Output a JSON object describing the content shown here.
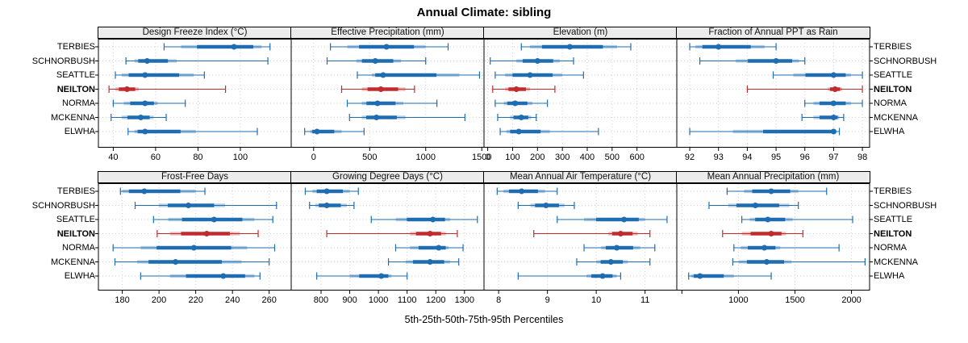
{
  "title": "Annual Climate: sibling",
  "caption": "5th-25th-50th-75th-95th Percentiles",
  "sites": [
    "TERBIES",
    "SCHNORBUSH",
    "SEATTLE",
    "NEILTON",
    "NORMA",
    "MCKENNA",
    "ELWHA"
  ],
  "highlight_site": "NEILTON",
  "colors": {
    "series_blue": "#1E6DB0",
    "highlight_red": "#C22B2E",
    "band_alpha": 0.32,
    "grid": "#d0d0d0",
    "strip_bg": "#ececec",
    "panel_border": "#000000"
  },
  "chart_data": {
    "type": "percentile-dotplot",
    "layout": "2 rows x 4 columns of panels, shared site rows, dotted grid, strip headers",
    "percentile_order": [
      "p5",
      "p25",
      "p50",
      "p75",
      "p95"
    ],
    "panels": [
      {
        "title": "Design Freeze Index (°C)",
        "xlim": [
          33,
          124
        ],
        "ticks": [
          {
            "v": 40,
            "label": "40"
          },
          {
            "v": 60,
            "label": "60"
          },
          {
            "v": 80,
            "label": "80"
          },
          {
            "v": 100,
            "label": "100"
          }
        ],
        "values": {
          "TERBIES": [
            64,
            72,
            97,
            110,
            114
          ],
          "SCHNORBUSH": [
            46,
            50,
            56,
            70,
            113
          ],
          "SEATTLE": [
            41,
            44,
            55,
            78,
            83
          ],
          "NEILTON": [
            38,
            41,
            46.5,
            52,
            93
          ],
          "NORMA": [
            40,
            45,
            55,
            61,
            74
          ],
          "MCKENNA": [
            39,
            44,
            53,
            59,
            65
          ],
          "ELWHA": [
            47,
            50,
            55,
            79,
            108
          ]
        }
      },
      {
        "title": "Effective Precipitation (mm)",
        "xlim": [
          -200,
          1520
        ],
        "ticks": [
          {
            "v": 0,
            "label": "0"
          },
          {
            "v": 500,
            "label": "500"
          },
          {
            "v": 1000,
            "label": "1000"
          },
          {
            "v": 1500,
            "label": "1500"
          }
        ],
        "values": {
          "TERBIES": [
            150,
            300,
            650,
            1000,
            1200
          ],
          "SCHNORBUSH": [
            120,
            380,
            550,
            780,
            1000
          ],
          "SEATTLE": [
            390,
            520,
            620,
            1300,
            1480
          ],
          "NEILTON": [
            250,
            430,
            600,
            820,
            900
          ],
          "NORMA": [
            300,
            430,
            570,
            800,
            1100
          ],
          "MCKENNA": [
            320,
            430,
            560,
            820,
            1350
          ],
          "ELWHA": [
            -80,
            -30,
            30,
            250,
            450
          ]
        }
      },
      {
        "title": "Elevation (m)",
        "xlim": [
          -15,
          760
        ],
        "ticks": [
          {
            "v": 0,
            "label": "0"
          },
          {
            "v": 100,
            "label": "100"
          },
          {
            "v": 200,
            "label": "200"
          },
          {
            "v": 300,
            "label": "300"
          },
          {
            "v": 400,
            "label": "400"
          },
          {
            "v": 500,
            "label": "500"
          },
          {
            "v": 600,
            "label": "600"
          }
        ],
        "values": {
          "TERBIES": [
            135,
            170,
            330,
            520,
            575
          ],
          "SCHNORBUSH": [
            10,
            115,
            200,
            290,
            345
          ],
          "SEATTLE": [
            30,
            70,
            170,
            300,
            385
          ],
          "NEILTON": [
            20,
            70,
            115,
            170,
            270
          ],
          "NORMA": [
            30,
            65,
            110,
            180,
            240
          ],
          "MCKENNA": [
            40,
            90,
            135,
            175,
            195
          ],
          "ELWHA": [
            50,
            75,
            125,
            250,
            445
          ]
        }
      },
      {
        "title": "Fraction of Annual PPT as Rain",
        "xlim": [
          91.55,
          98.25
        ],
        "ticks": [
          {
            "v": 92,
            "label": "92"
          },
          {
            "v": 93,
            "label": "93"
          },
          {
            "v": 94,
            "label": "94"
          },
          {
            "v": 95,
            "label": "95"
          },
          {
            "v": 96,
            "label": "96"
          },
          {
            "v": 97,
            "label": "97"
          },
          {
            "v": 98,
            "label": "98"
          }
        ],
        "values": {
          "TERBIES": [
            92.0,
            92.2,
            93.0,
            94.6,
            95.0
          ],
          "SCHNORBUSH": [
            92.35,
            93.6,
            95.0,
            95.8,
            96.0
          ],
          "SEATTLE": [
            94.9,
            95.6,
            97.0,
            97.6,
            98.0
          ],
          "NEILTON": [
            94.0,
            96.8,
            97.05,
            97.3,
            98.0
          ],
          "NORMA": [
            96.0,
            96.3,
            97.0,
            97.6,
            98.0
          ],
          "MCKENNA": [
            95.9,
            96.3,
            97.0,
            97.2,
            97.35
          ],
          "ELWHA": [
            92.0,
            93.5,
            97.0,
            97.1,
            97.2
          ]
        }
      },
      {
        "title": "Frost-Free Days",
        "xlim": [
          167,
          272
        ],
        "ticks": [
          {
            "v": 180,
            "label": "180"
          },
          {
            "v": 200,
            "label": "200"
          },
          {
            "v": 220,
            "label": "220"
          },
          {
            "v": 240,
            "label": "240"
          },
          {
            "v": 260,
            "label": "260"
          }
        ],
        "values": {
          "TERBIES": [
            179,
            180,
            192,
            220,
            225
          ],
          "SCHNORBUSH": [
            187,
            200,
            216,
            236,
            264
          ],
          "SEATTLE": [
            197,
            205,
            230,
            252,
            262
          ],
          "NEILTON": [
            199,
            206,
            226,
            244,
            254
          ],
          "NORMA": [
            175,
            190,
            219,
            248,
            263
          ],
          "MCKENNA": [
            176,
            188,
            209,
            245,
            260
          ],
          "ELWHA": [
            190,
            206,
            235,
            252,
            255
          ]
        }
      },
      {
        "title": "Growing Degree Days (°C)",
        "xlim": [
          696,
          1368
        ],
        "ticks": [
          {
            "v": 800,
            "label": "800"
          },
          {
            "v": 900,
            "label": "900"
          },
          {
            "v": 1000,
            "label": "1000"
          },
          {
            "v": 1100,
            "label": "1100"
          },
          {
            "v": 1200,
            "label": "1200"
          },
          {
            "v": 1300,
            "label": "1300"
          }
        ],
        "values": {
          "TERBIES": [
            745,
            770,
            820,
            900,
            930
          ],
          "SCHNORBUSH": [
            760,
            780,
            820,
            890,
            915
          ],
          "SEATTLE": [
            975,
            1060,
            1190,
            1250,
            1345
          ],
          "NEILTON": [
            820,
            1110,
            1180,
            1235,
            1275
          ],
          "NORMA": [
            1060,
            1110,
            1210,
            1245,
            1295
          ],
          "MCKENNA": [
            1035,
            1095,
            1180,
            1250,
            1280
          ],
          "ELWHA": [
            785,
            900,
            1010,
            1045,
            1100
          ]
        }
      },
      {
        "title": "Mean Annual Air Temperature (°C)",
        "xlim": [
          7.7,
          11.65
        ],
        "ticks": [
          {
            "v": 8,
            "label": "8"
          },
          {
            "v": 9,
            "label": "9"
          },
          {
            "v": 10,
            "label": "10"
          },
          {
            "v": 11,
            "label": "11"
          }
        ],
        "values": {
          "TERBIES": [
            7.97,
            8.1,
            8.47,
            8.95,
            9.2
          ],
          "SCHNORBUSH": [
            8.4,
            8.65,
            8.97,
            9.35,
            9.55
          ],
          "SEATTLE": [
            9.2,
            9.75,
            10.57,
            11.0,
            11.45
          ],
          "NEILTON": [
            8.72,
            10.25,
            10.5,
            10.85,
            11.1
          ],
          "NORMA": [
            9.75,
            10.1,
            10.42,
            10.9,
            11.2
          ],
          "MCKENNA": [
            9.6,
            10.0,
            10.3,
            10.65,
            11.1
          ],
          "ELWHA": [
            8.4,
            9.8,
            10.13,
            10.42,
            10.5
          ]
        }
      },
      {
        "title": "Mean Annual Precipitation (mm)",
        "xlim": [
          455,
          2160
        ],
        "ticks": [
          {
            "v": 500,
            "label": ""
          },
          {
            "v": 1000,
            "label": "1000"
          },
          {
            "v": 1500,
            "label": "1500"
          },
          {
            "v": 2000,
            "label": "2000"
          }
        ],
        "values": {
          "TERBIES": [
            900,
            1050,
            1290,
            1530,
            1780
          ],
          "SCHNORBUSH": [
            740,
            910,
            1150,
            1450,
            1530
          ],
          "SEATTLE": [
            1030,
            1100,
            1260,
            1480,
            2010
          ],
          "NEILTON": [
            860,
            1030,
            1290,
            1420,
            1570
          ],
          "NORMA": [
            960,
            1020,
            1230,
            1370,
            1890
          ],
          "MCKENNA": [
            950,
            1000,
            1250,
            1470,
            2120
          ],
          "ELWHA": [
            560,
            580,
            660,
            960,
            1290
          ]
        }
      }
    ]
  }
}
